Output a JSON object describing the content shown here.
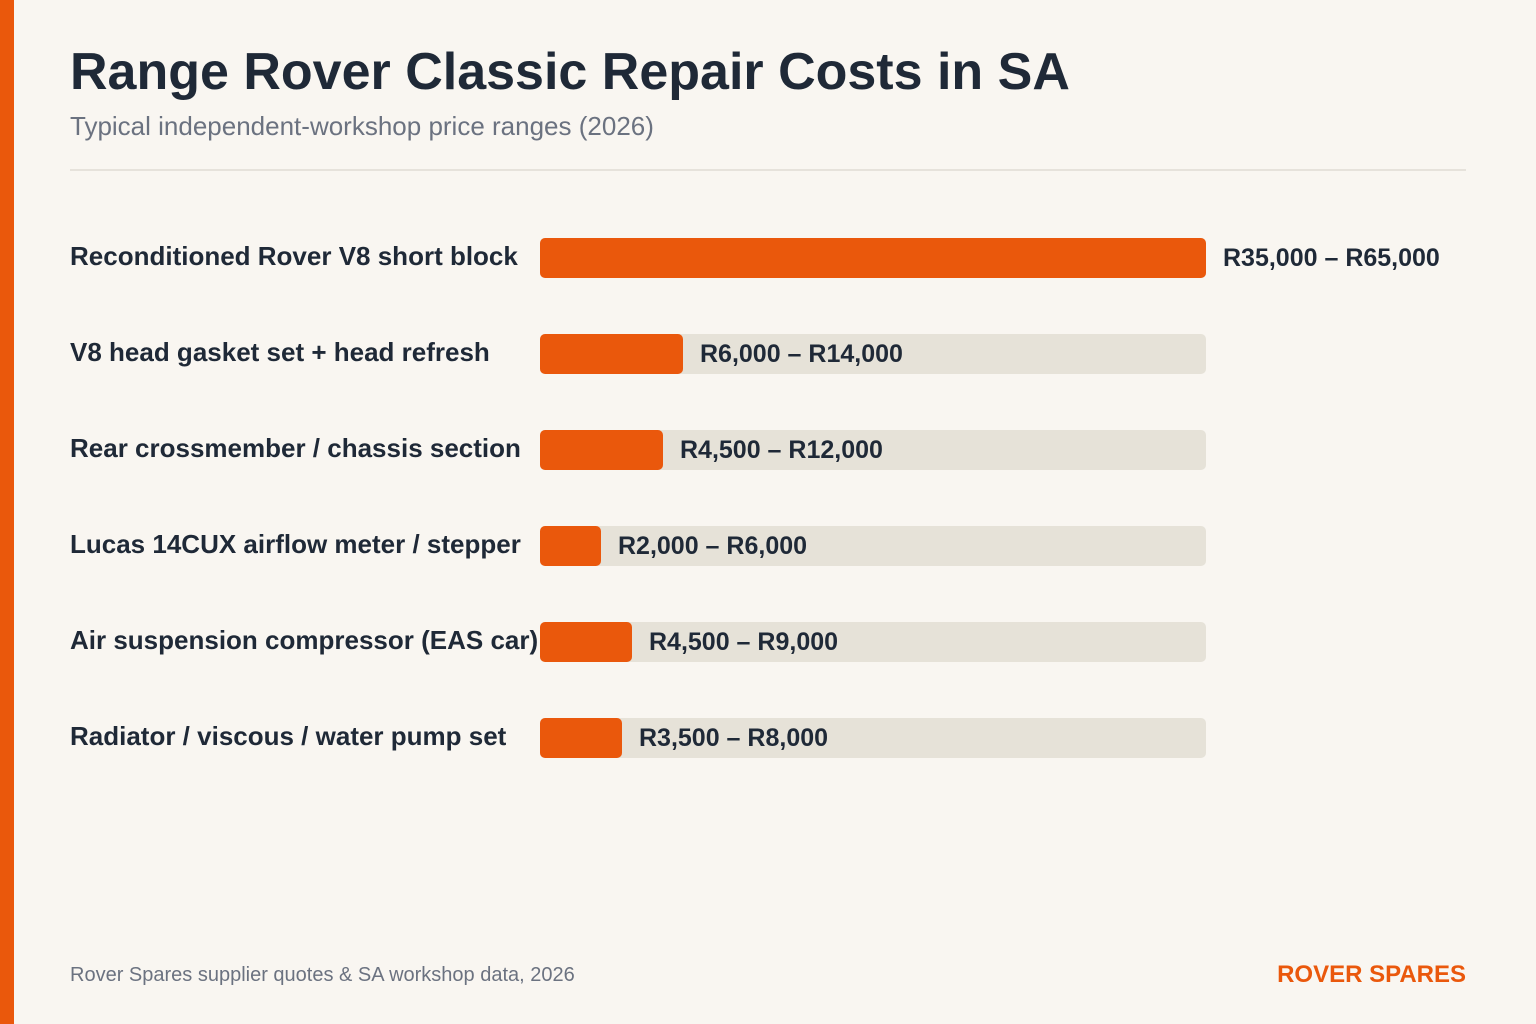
{
  "title": "Range Rover Classic Repair Costs in SA",
  "subtitle": "Typical independent-workshop price ranges (2026)",
  "footer": {
    "source": "Rover Spares supplier quotes & SA workshop data, 2026",
    "brand": "ROVER SPARES"
  },
  "colors": {
    "accent": "#ea580c",
    "track": "#e6e2d8",
    "background": "#f9f6f1",
    "text": "#1f2937",
    "muted": "#6b7280"
  },
  "chart_data": {
    "type": "bar",
    "orientation": "horizontal",
    "title": "Range Rover Classic Repair Costs in SA",
    "subtitle": "Typical independent-workshop price ranges (2026)",
    "categories": [
      "Reconditioned Rover V8 short block",
      "V8 head gasket set + head refresh",
      "Rear crossmember / chassis section",
      "Lucas 14CUX airflow meter / stepper",
      "Air suspension compressor (EAS car)",
      "Radiator / viscous / water pump set"
    ],
    "values": [
      65000,
      14000,
      12000,
      6000,
      9000,
      8000
    ],
    "value_labels": [
      "R35,000 – R65,000",
      "R6,000 – R14,000",
      "R4,500 – R12,000",
      "R2,000 – R6,000",
      "R4,500 – R9,000",
      "R3,500 – R8,000"
    ],
    "xlim": [
      0,
      65000
    ],
    "grid": false,
    "legend": "none"
  }
}
